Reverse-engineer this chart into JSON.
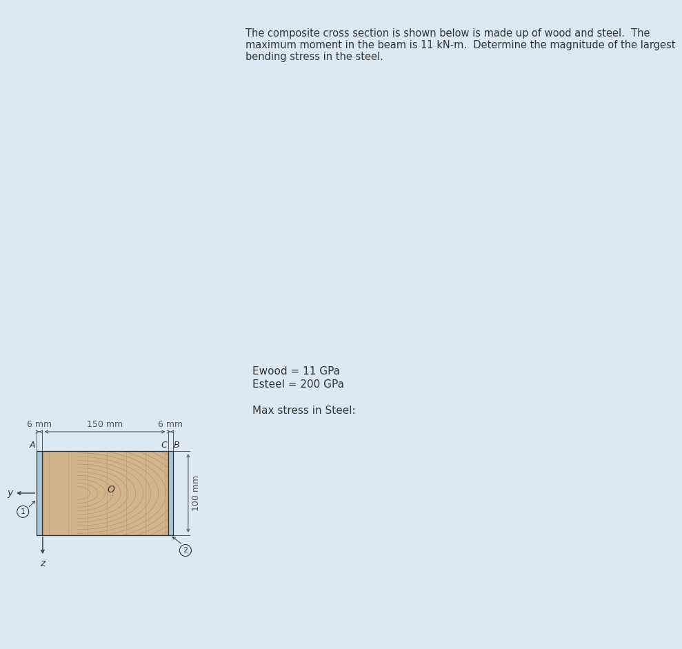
{
  "bg_color": "#dce9f2",
  "wood_color": "#d2b48c",
  "wood_grain_color": "#b8976a",
  "steel_color": "#aac5d5",
  "line_color": "#333333",
  "dim_line_color": "#555555",
  "desc_text_line1": "The composite cross section is shown below is made up of wood and steel.  The",
  "desc_text_line2": "maximum moment in the beam is 11 kN-m.  Determine the magnitude of the largest",
  "desc_text_line3": "bending stress in the steel.",
  "label_ewood": "Ewood = 11 GPa",
  "label_esteel": "Esteel = 200 GPa",
  "label_maxstress": "Max stress in Steel:",
  "dim_6mm_left": "6 mm",
  "dim_150mm": "150 mm",
  "dim_6mm_right": "6 mm",
  "dim_100mm": "100 mm",
  "label_A": "A",
  "label_C": "C",
  "label_B": "B",
  "label_O": "O",
  "label_y": "y",
  "label_z": "z",
  "label_1": "1",
  "label_2": "2",
  "font_size_text": 10.5,
  "font_size_dim": 9,
  "font_size_label": 9,
  "fig_width": 7.03,
  "fig_height": 9.21
}
